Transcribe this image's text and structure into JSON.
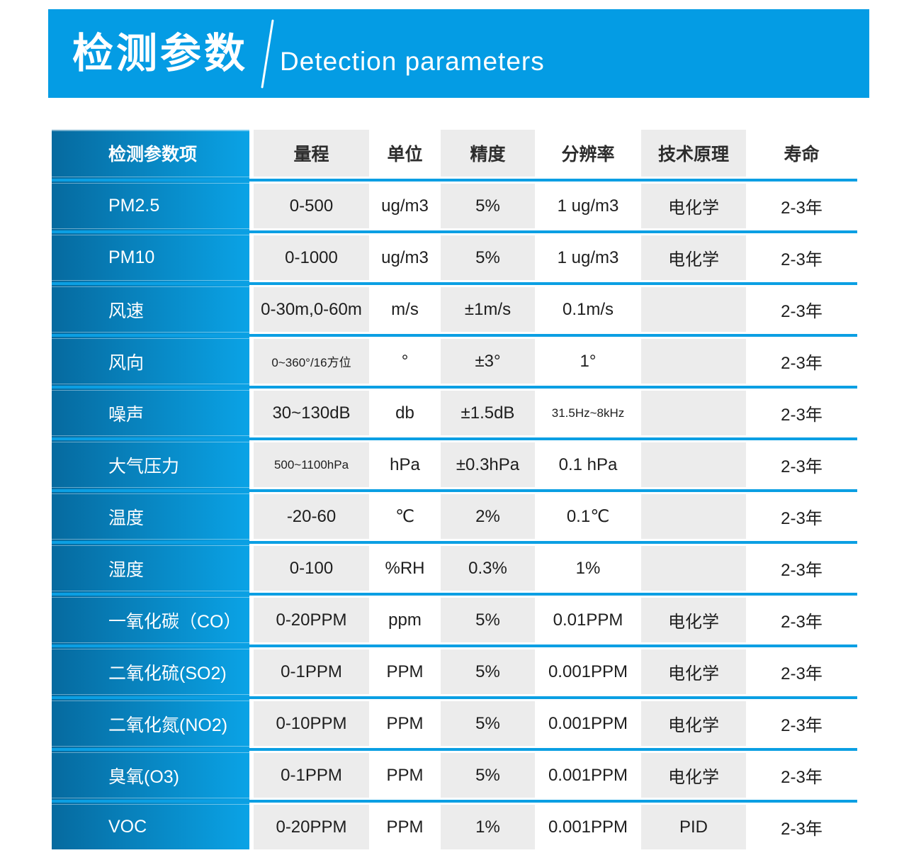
{
  "banner": {
    "title_cn": "检测参数",
    "title_en": "Detection parameters"
  },
  "table": {
    "columns": [
      {
        "label": "检测参数项"
      },
      {
        "label": "量程"
      },
      {
        "label": "单位"
      },
      {
        "label": "精度"
      },
      {
        "label": "分辨率"
      },
      {
        "label": "技术原理"
      },
      {
        "label": "寿命"
      }
    ],
    "rows": [
      {
        "param": "PM2.5",
        "range": "0-500",
        "unit": "ug/m3",
        "accuracy": "5%",
        "resolution": "1 ug/m3",
        "principle": "电化学",
        "life": "2-3年"
      },
      {
        "param": "PM10",
        "range": "0-1000",
        "unit": "ug/m3",
        "accuracy": "5%",
        "resolution": "1 ug/m3",
        "principle": "电化学",
        "life": "2-3年"
      },
      {
        "param": "风速",
        "range": "0-30m,0-60m",
        "unit": "m/s",
        "accuracy": "±1m/s",
        "resolution": "0.1m/s",
        "principle": "",
        "life": "2-3年"
      },
      {
        "param": "风向",
        "range": "0~360°/16方位",
        "unit": "°",
        "accuracy": "±3°",
        "resolution": "1°",
        "principle": "",
        "life": "2-3年"
      },
      {
        "param": "噪声",
        "range": "30~130dB",
        "unit": "db",
        "accuracy": "±1.5dB",
        "resolution": "31.5Hz~8kHz",
        "principle": "",
        "life": "2-3年"
      },
      {
        "param": "大气压力",
        "range": "500~1100hPa",
        "unit": "hPa",
        "accuracy": "±0.3hPa",
        "resolution": "0.1 hPa",
        "principle": "",
        "life": "2-3年"
      },
      {
        "param": "温度",
        "range": "-20-60",
        "unit": "℃",
        "accuracy": "2%",
        "resolution": "0.1℃",
        "principle": "",
        "life": "2-3年"
      },
      {
        "param": "湿度",
        "range": "0-100",
        "unit": "%RH",
        "accuracy": "0.3%",
        "resolution": "1%",
        "principle": "",
        "life": "2-3年"
      },
      {
        "param": "一氧化碳（CO）",
        "range": "0-20PPM",
        "unit": "ppm",
        "accuracy": "5%",
        "resolution": "0.01PPM",
        "principle": "电化学",
        "life": "2-3年"
      },
      {
        "param": "二氧化硫(SO2)",
        "range": "0-1PPM",
        "unit": "PPM",
        "accuracy": "5%",
        "resolution": "0.001PPM",
        "principle": "电化学",
        "life": "2-3年"
      },
      {
        "param": "二氧化氮(NO2)",
        "range": "0-10PPM",
        "unit": "PPM",
        "accuracy": "5%",
        "resolution": "0.001PPM",
        "principle": "电化学",
        "life": "2-3年"
      },
      {
        "param": "臭氧(O3)",
        "range": "0-1PPM",
        "unit": "PPM",
        "accuracy": "5%",
        "resolution": "0.001PPM",
        "principle": "电化学",
        "life": "2-3年"
      },
      {
        "param": "VOC",
        "range": "0-20PPM",
        "unit": "PPM",
        "accuracy": "1%",
        "resolution": "0.001PPM",
        "principle": "PID",
        "life": "2-3年"
      }
    ]
  },
  "colors": {
    "banner_blue": "#049ce4",
    "param_column_gradient_dark": "#066a9f",
    "param_column_gradient_light": "#0aa3e6",
    "row_divider_blue": "#0b9fe3",
    "cell_gray": "#ececec",
    "header_text": "#2d2d2d",
    "value_text": "#1e1e1e"
  }
}
